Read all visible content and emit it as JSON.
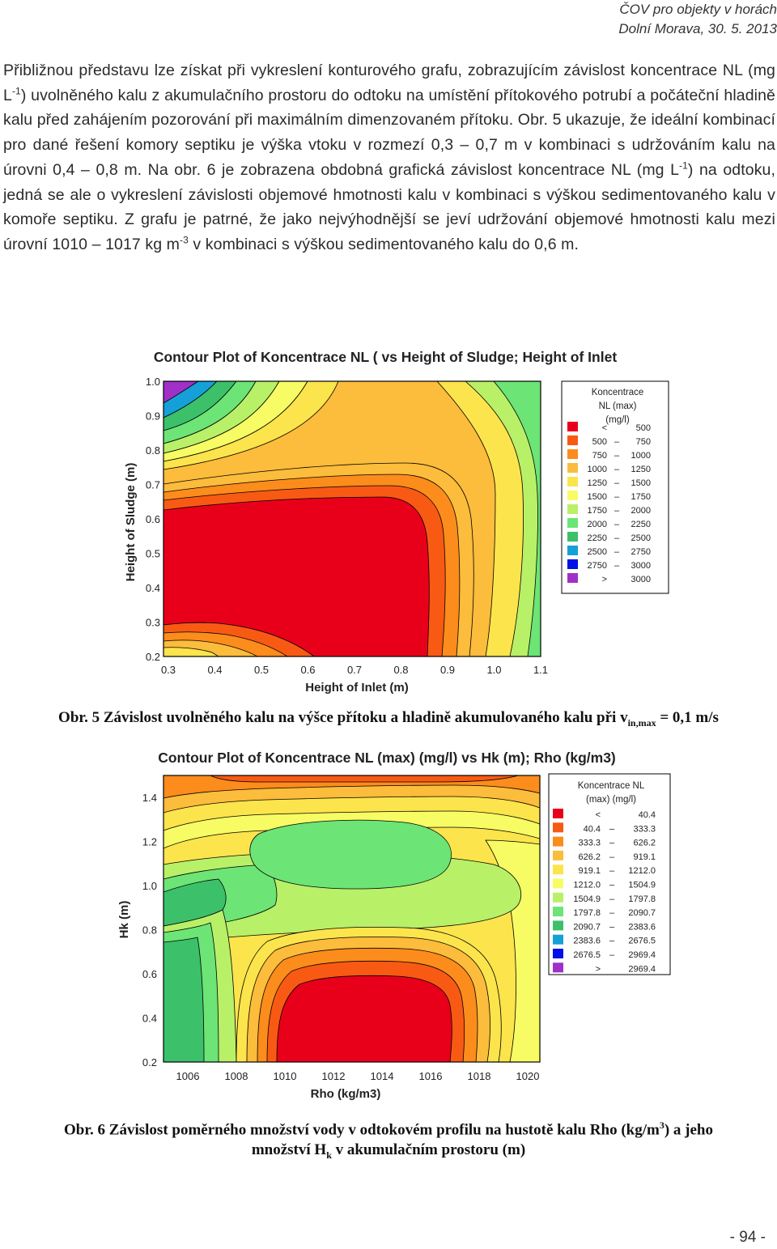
{
  "header": {
    "line1": "ČOV pro objekty v horách",
    "line2": "Dolní Morava, 30. 5. 2013"
  },
  "paragraph": {
    "p1": "Přibližnou představu lze získat při vykreslení konturového grafu, zobrazujícím závislost koncentrace NL (mg L",
    "p1_sup": "-1",
    "p2": ") uvolněného kalu z akumulačního prostoru do odtoku na umístění přítokového potrubí a počáteční hladině kalu před zahájením pozorování při maximálním dimenzovaném přítoku. Obr. 5 ukazuje, že ideální kombinací pro dané řešení komory septiku je výška vtoku v rozmezí 0,3 – 0,7 m v kombinaci s udržováním kalu na úrovni 0,4 – 0,8 m. Na obr. 6 je zobrazena obdobná grafická závislost koncentrace NL (mg L",
    "p2_sup": "-1",
    "p3": ") na odtoku, jedná se ale o vykreslení závislosti objemové hmotnosti kalu v kombinaci s výškou sedimentovaného kalu v komoře septiku. Z grafu je patrné, že jako nejvýhodnější se jeví udržování objemové hmotnosti kalu mezi úrovní 1010 – 1017 kg m",
    "p3_sup": "-3",
    "p4": " v kombinaci s výškou sedimentovaného kalu do 0,6 m."
  },
  "colors": [
    "#e8001a",
    "#f85a14",
    "#fc8c1c",
    "#fcbc3c",
    "#fce44c",
    "#f8fc64",
    "#b8f068",
    "#6ce476",
    "#3cc06a",
    "#16a0d8",
    "#0010e8",
    "#a030c8",
    "#f800f0"
  ],
  "chart_data": [
    {
      "type": "heatmap",
      "subtype": "contour",
      "title": "Contour Plot of Koncentrace NL ( vs Height of Sludge; Height of Inlet",
      "xlabel": "Height of Inlet (m)",
      "ylabel": "Height of Sludge (m)",
      "xlim": [
        0.3,
        1.1
      ],
      "ylim": [
        0.2,
        1.0
      ],
      "xticks": [
        "0.3",
        "0.4",
        "0.5",
        "0.6",
        "0.7",
        "0.8",
        "0.9",
        "1.0",
        "1.1"
      ],
      "yticks": [
        "1.0",
        "0.9",
        "0.8",
        "0.7",
        "0.6",
        "0.5",
        "0.4",
        "0.3",
        "0.2"
      ],
      "legend_title": [
        "Koncentrace",
        "NL (max)",
        "(mg/l)"
      ],
      "legend": [
        [
          "<",
          "",
          "500"
        ],
        [
          "500",
          "–",
          "750"
        ],
        [
          "750",
          "–",
          "1000"
        ],
        [
          "1000",
          "–",
          "1250"
        ],
        [
          "1250",
          "–",
          "1500"
        ],
        [
          "1500",
          "–",
          "1750"
        ],
        [
          "1750",
          "–",
          "2000"
        ],
        [
          "2000",
          "–",
          "2250"
        ],
        [
          "2250",
          "–",
          "2500"
        ],
        [
          "2500",
          "–",
          "2750"
        ],
        [
          "2750",
          "–",
          "3000"
        ],
        [
          ">",
          "",
          "3000"
        ]
      ],
      "legend_position": "right",
      "caption": {
        "bold": "Obr. 5",
        "text": " Závislost uvolněného kalu na výšce přítoku a hladině akumulovaného kalu při v",
        "sub": "in,max",
        "end": " = 0,1 m/s"
      }
    },
    {
      "type": "heatmap",
      "subtype": "contour",
      "title": "Contour Plot of Koncentrace NL (max) (mg/l) vs Hk (m); Rho (kg/m3)",
      "xlabel": "Rho (kg/m3)",
      "ylabel": "Hk (m)",
      "xlim": [
        1005,
        1021
      ],
      "ylim": [
        0.2,
        1.5
      ],
      "xticks": [
        "1006",
        "1008",
        "1010",
        "1012",
        "1014",
        "1016",
        "1018",
        "1020"
      ],
      "yticks": [
        "1.4",
        "1.2",
        "1.0",
        "0.8",
        "0.6",
        "0.4",
        "0.2"
      ],
      "legend_title": [
        "Koncentrace NL",
        "(max) (mg/l)"
      ],
      "legend": [
        [
          "<",
          "",
          "40.4"
        ],
        [
          "40.4",
          "–",
          "333.3"
        ],
        [
          "333.3",
          "–",
          "626.2"
        ],
        [
          "626.2",
          "–",
          "919.1"
        ],
        [
          "919.1",
          "–",
          "1212.0"
        ],
        [
          "1212.0",
          "–",
          "1504.9"
        ],
        [
          "1504.9",
          "–",
          "1797.8"
        ],
        [
          "1797.8",
          "–",
          "2090.7"
        ],
        [
          "2090.7",
          "–",
          "2383.6"
        ],
        [
          "2383.6",
          "–",
          "2676.5"
        ],
        [
          "2676.5",
          "–",
          "2969.4"
        ],
        [
          ">",
          "",
          "2969.4"
        ]
      ],
      "legend_position": "right",
      "caption": {
        "bold": "Obr. 6",
        "text": " Závislost poměrného množství vody v odtokovém profilu na hustotě kalu Rho (kg/m",
        "sup": "3",
        "mid": ") a jeho",
        "line2a": "množství H",
        "sub": "k",
        "line2b": " v akumulačním prostoru (m)"
      }
    }
  ],
  "page_number": "- 94 -"
}
